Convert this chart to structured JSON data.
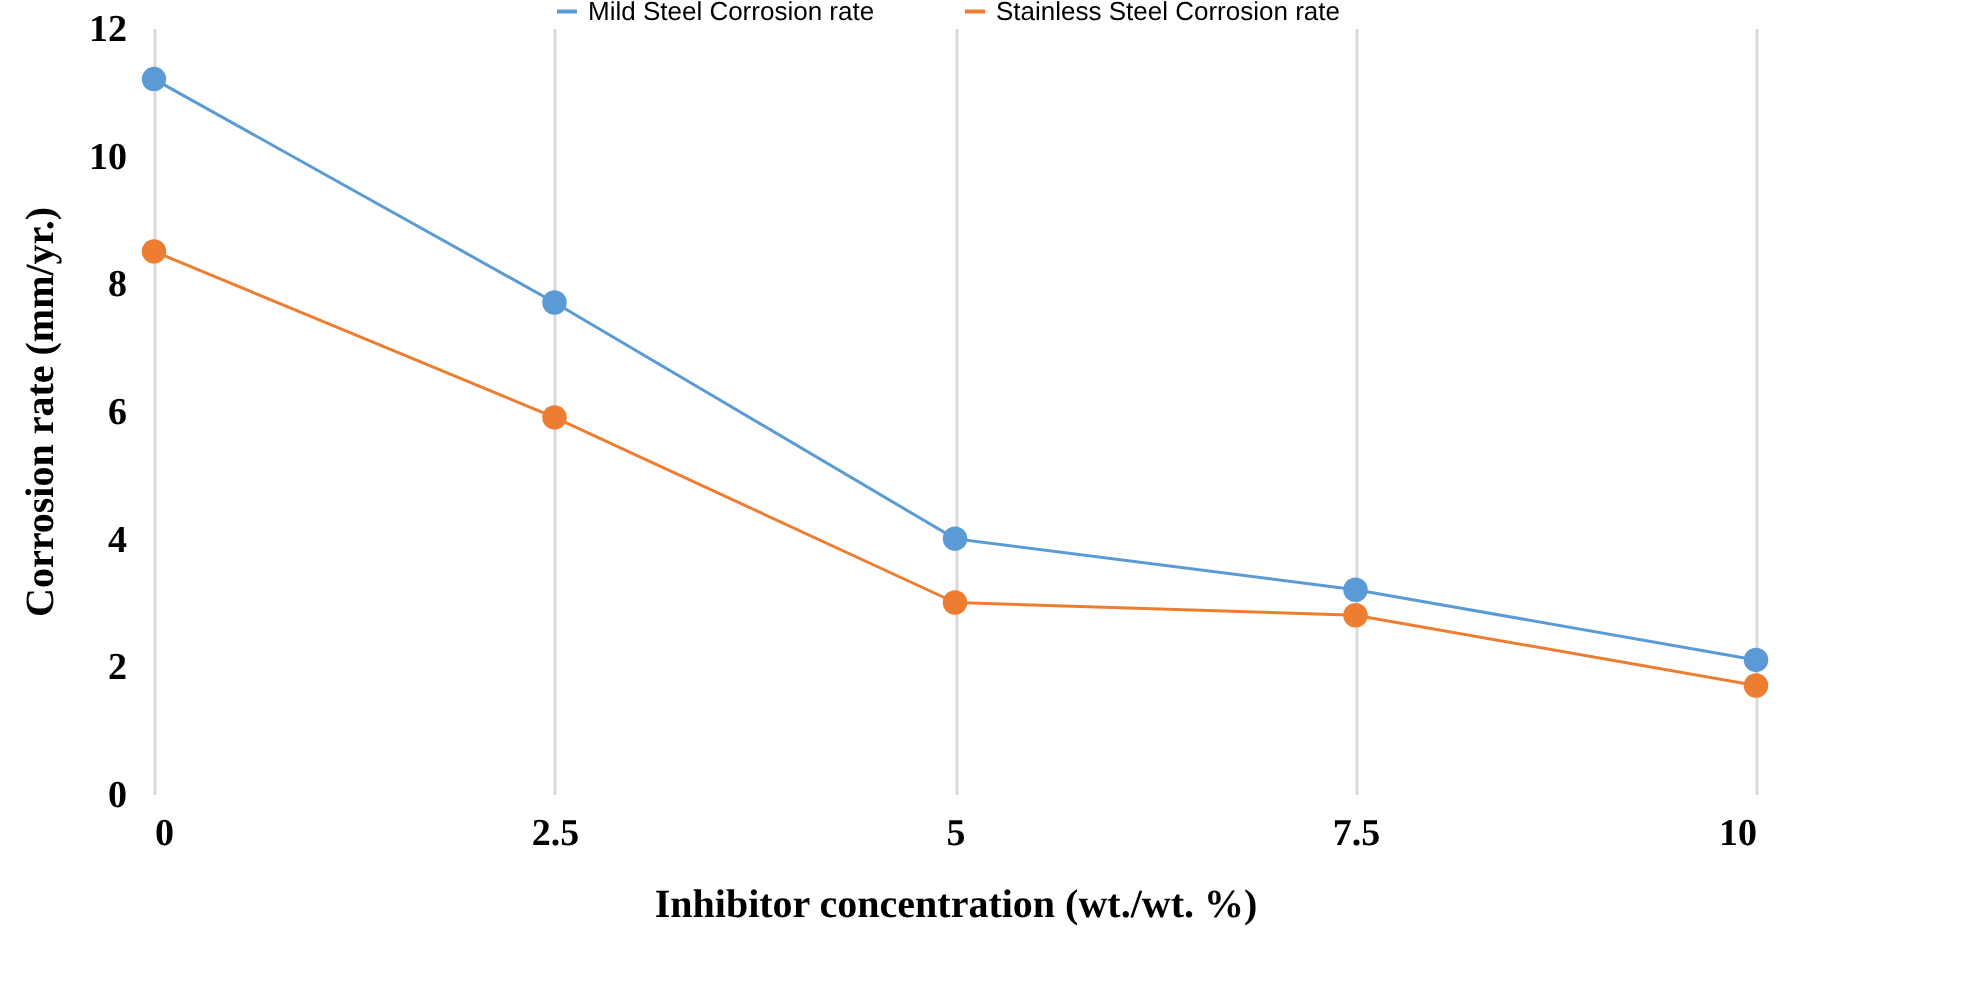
{
  "chart_data": {
    "type": "line",
    "xlabel": "Inhibitor concentration (wt./wt. %)",
    "ylabel": "Corrosion rate (mm/yr.)",
    "x": [
      0,
      2.5,
      5,
      7.5,
      10
    ],
    "series": [
      {
        "name": "Mild Steel Corrosion rate",
        "color": "#5b9bd5",
        "values": [
          11.2,
          7.7,
          4.0,
          3.2,
          2.1
        ]
      },
      {
        "name": "Stainless Steel Corrosion rate",
        "color": "#ed7d31",
        "values": [
          8.5,
          5.9,
          3.0,
          2.8,
          1.7
        ]
      }
    ],
    "xlim": [
      0,
      10
    ],
    "xticks": [
      0,
      2.5,
      5,
      7.5,
      10
    ],
    "ylim": [
      0,
      12
    ],
    "yticks": [
      0,
      2,
      4,
      6,
      8,
      10,
      12
    ],
    "grid": "x",
    "legend": "top",
    "marker": "circle",
    "line_style": "solid"
  }
}
